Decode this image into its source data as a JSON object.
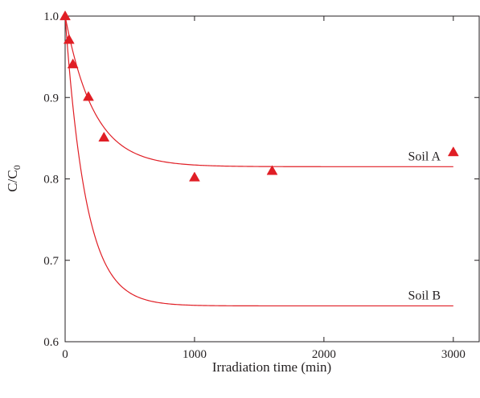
{
  "chart_data": {
    "type": "scatter",
    "xlabel": "Irradiation time (min)",
    "ylabel_main": "C/C",
    "ylabel_sub": "0",
    "xlim": [
      0,
      3200
    ],
    "ylim": [
      0.6,
      1.0
    ],
    "x_ticks": [
      0,
      1000,
      2000,
      3000
    ],
    "y_ticks": [
      0.6,
      0.7,
      0.8,
      0.9,
      1.0
    ],
    "x_tick_labels": [
      "0",
      "1000",
      "2000",
      "3000"
    ],
    "y_tick_labels": [
      "0.6",
      "0.7",
      "0.8",
      "0.9",
      "1.0"
    ],
    "grid": false,
    "series": [
      {
        "name": "Soil A",
        "marker": "triangle",
        "points": [
          {
            "x": 0,
            "y": 1.0
          },
          {
            "x": 30,
            "y": 0.971
          },
          {
            "x": 60,
            "y": 0.941
          },
          {
            "x": 180,
            "y": 0.901
          },
          {
            "x": 300,
            "y": 0.851
          },
          {
            "x": 1000,
            "y": 0.802
          },
          {
            "x": 1600,
            "y": 0.81
          },
          {
            "x": 3000,
            "y": 0.833
          }
        ],
        "fit": {
          "model": "exponential",
          "plateau": 0.815,
          "rate": 0.00448
        }
      },
      {
        "name": "Soil B",
        "marker": "none",
        "points": [],
        "fit": {
          "model": "exponential",
          "plateau": 0.644,
          "rate": 0.0062
        }
      }
    ],
    "annotations": [
      {
        "text": "Soil A",
        "series": 0
      },
      {
        "text": "Soil B",
        "series": 1
      }
    ]
  },
  "colors": {
    "series": "#e01e25",
    "axis": "#231f20"
  }
}
